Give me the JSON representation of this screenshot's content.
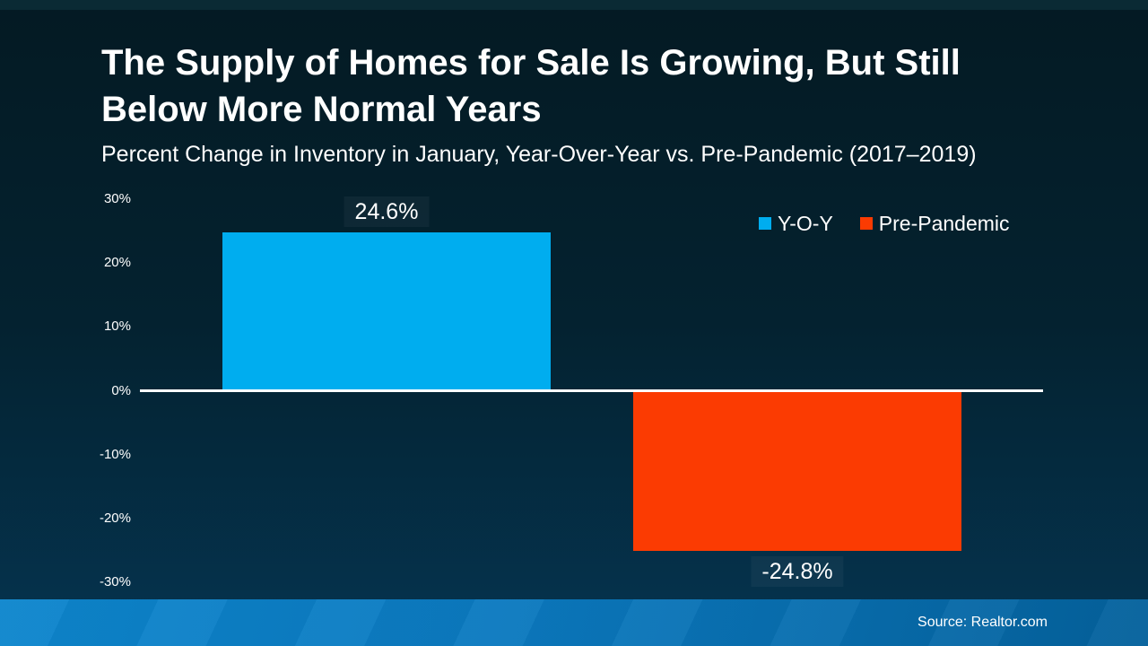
{
  "header": {
    "title": "The Supply of Homes for Sale Is Growing, But Still Below More Normal Years",
    "subtitle": "Percent Change in Inventory in January, Year-Over-Year vs. Pre-Pandemic (2017–2019)"
  },
  "chart_data": {
    "type": "bar",
    "title": "The Supply of Homes for Sale Is Growing, But Still Below More Normal Years",
    "subtitle": "Percent Change in Inventory in January, Year-Over-Year vs. Pre-Pandemic (2017–2019)",
    "categories": [
      "Y-O-Y",
      "Pre-Pandemic"
    ],
    "series": [
      {
        "name": "Y-O-Y",
        "value": 24.6,
        "data_label": "24.6%",
        "color": "#00ADEF"
      },
      {
        "name": "Pre-Pandemic",
        "value": -24.8,
        "data_label": "-24.8%",
        "color": "#FB3B02"
      }
    ],
    "xlabel": "",
    "ylabel": "",
    "ylim": [
      -30,
      30
    ],
    "yticks": [
      {
        "value": 30,
        "label": "30%"
      },
      {
        "value": 20,
        "label": "20%"
      },
      {
        "value": 10,
        "label": "10%"
      },
      {
        "value": 0,
        "label": "0%"
      },
      {
        "value": -10,
        "label": "-10%"
      },
      {
        "value": -20,
        "label": "-20%"
      },
      {
        "value": -30,
        "label": "-30%"
      }
    ],
    "legend": [
      "Y-O-Y",
      "Pre-Pandemic"
    ],
    "legend_position": "top-right",
    "grid": false
  },
  "footer": {
    "source": "Source: Realtor.com"
  },
  "colors": {
    "background_top": "#041A23",
    "background_mid": "#042230",
    "background_bottom": "#053450",
    "bar_yoy": "#00ADEF",
    "bar_pre_pandemic": "#FB3B02",
    "axis_line": "#FFFFFF",
    "text": "#FFFFFF",
    "footer_gradient_left": "#0D86CD",
    "footer_gradient_mid": "#0B79BF",
    "footer_gradient_right": "#04619C"
  }
}
